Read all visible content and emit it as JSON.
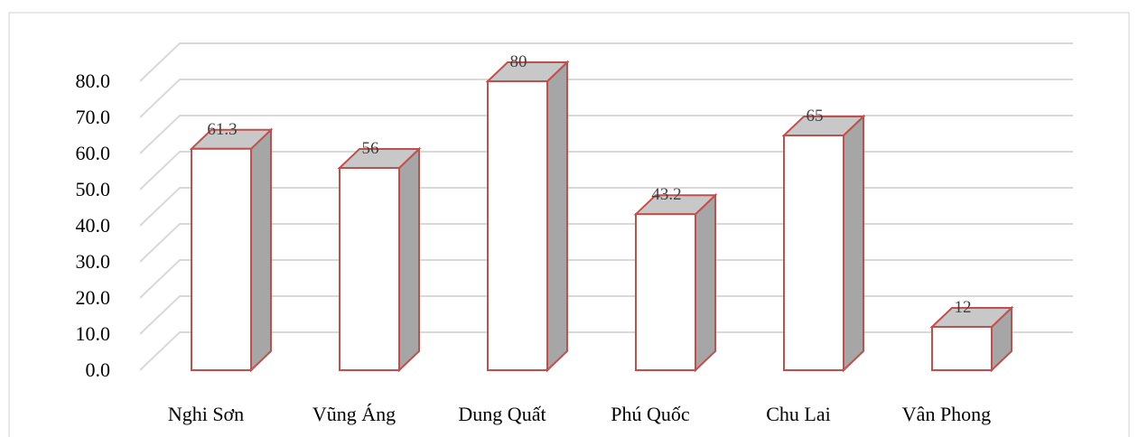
{
  "chart_data": {
    "type": "bar",
    "title": "",
    "categories": [
      "Nghi Sơn",
      "Vũng Áng",
      "Dung Quất",
      "Phú Quốc",
      "Chu Lai",
      "Vân Phong"
    ],
    "series": [
      {
        "values": [
          61.3,
          56,
          80,
          43.2,
          65,
          12
        ]
      }
    ],
    "data_labels": [
      "61.3",
      "56",
      "80",
      "43.2",
      "65",
      "12"
    ],
    "yticks": [
      "0.0",
      "10.0",
      "20.0",
      "30.0",
      "40.0",
      "50.0",
      "60.0",
      "70.0",
      "80.0"
    ],
    "ylim": [
      0,
      80
    ],
    "xlabel": "",
    "ylabel": "",
    "grid": true,
    "style": "3d-column",
    "colors": {
      "front": "#ffffff",
      "top": "#c8c8c8",
      "side": "#a6a6a6",
      "outline": "#c0504d",
      "grid": "#d9d9d9"
    }
  }
}
